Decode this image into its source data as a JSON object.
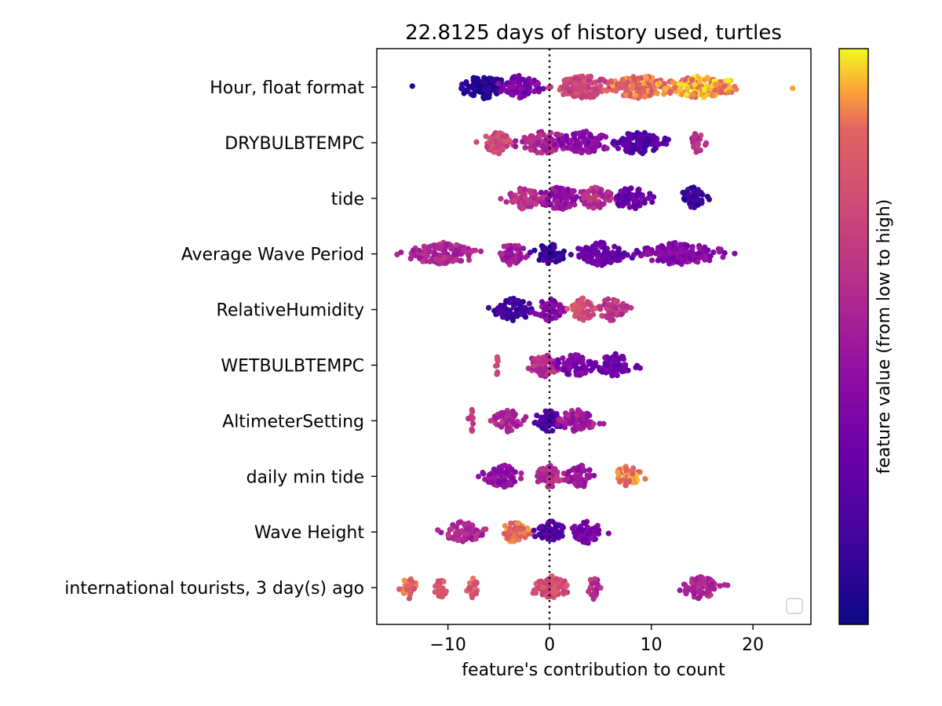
{
  "chart_data": {
    "type": "scatter",
    "subtype": "beeswarm",
    "title": "22.8125 days of history used, turtles",
    "xlabel": "feature's contribution to count",
    "ylabel": "",
    "xlim": [
      -17,
      25.7
    ],
    "xticks": [
      -10,
      0,
      10,
      20
    ],
    "xtick_labels": [
      "−10",
      "0",
      "10",
      "20"
    ],
    "reference_line": {
      "x": 0,
      "style": "dotted",
      "color": "#000000"
    },
    "grid": false,
    "legend": {
      "placement": "lower right",
      "entries": []
    },
    "colorbar": {
      "label": "feature value (from low to high)",
      "colormap": "plasma",
      "low_color": "#0d0887",
      "high_color": "#f0f921",
      "tick_labels": []
    },
    "features": [
      {
        "name": "Hour, float format",
        "spread": [
          -13.5,
          23.9
        ],
        "clusters": [
          {
            "range": [
              -10,
              -3
            ],
            "color": 0.05
          },
          {
            "range": [
              -6,
              0
            ],
            "color": 0.35
          },
          {
            "range": [
              -1,
              8
            ],
            "color": 0.7
          },
          {
            "range": [
              4,
              14
            ],
            "color": 0.85
          },
          {
            "range": [
              10,
              20
            ],
            "color": 0.92
          }
        ]
      },
      {
        "name": "DRYBULBTEMPC",
        "spread": [
          -7.2,
          15.4
        ],
        "clusters": [
          {
            "range": [
              -7.2,
              -3
            ],
            "color": 0.72
          },
          {
            "range": [
              -4,
              3
            ],
            "color": 0.55
          },
          {
            "range": [
              0,
              7
            ],
            "color": 0.4
          },
          {
            "range": [
              5,
              12.5
            ],
            "color": 0.2
          },
          {
            "range": [
              13.5,
              15.4
            ],
            "color": 0.6
          }
        ]
      },
      {
        "name": "tide",
        "spread": [
          -4.8,
          15.7
        ],
        "clusters": [
          {
            "range": [
              -4.8,
              0
            ],
            "color": 0.62
          },
          {
            "range": [
              -2,
              4
            ],
            "color": 0.45
          },
          {
            "range": [
              2,
              7
            ],
            "color": 0.58
          },
          {
            "range": [
              5.5,
              10.5
            ],
            "color": 0.28
          },
          {
            "range": [
              12.5,
              15.7
            ],
            "color": 0.12
          }
        ]
      },
      {
        "name": "Average Wave Period",
        "spread": [
          -15,
          18.2
        ],
        "clusters": [
          {
            "range": [
              -15,
              -6
            ],
            "color": 0.55
          },
          {
            "range": [
              -5.5,
              -2
            ],
            "color": 0.5
          },
          {
            "range": [
              -2,
              2
            ],
            "color": 0.12
          },
          {
            "range": [
              1,
              9
            ],
            "color": 0.28
          },
          {
            "range": [
              7,
              18.2
            ],
            "color": 0.38
          }
        ]
      },
      {
        "name": "RelativeHumidity",
        "spread": [
          -6,
          8
        ],
        "clusters": [
          {
            "range": [
              -6,
              -1
            ],
            "color": 0.15
          },
          {
            "range": [
              -2,
              2
            ],
            "color": 0.4
          },
          {
            "range": [
              1.5,
              5
            ],
            "color": 0.75
          },
          {
            "range": [
              4,
              8
            ],
            "color": 0.62
          }
        ]
      },
      {
        "name": "WETBULBTEMPC",
        "spread": [
          -5.3,
          8.9
        ],
        "clusters": [
          {
            "range": [
              -5.3,
              -5
            ],
            "color": 0.72
          },
          {
            "range": [
              -3,
              2
            ],
            "color": 0.6
          },
          {
            "range": [
              0,
              5
            ],
            "color": 0.35
          },
          {
            "range": [
              4,
              8.9
            ],
            "color": 0.3
          }
        ]
      },
      {
        "name": "AltimeterSetting",
        "spread": [
          -8,
          5.3
        ],
        "clusters": [
          {
            "range": [
              -8,
              -7.3
            ],
            "color": 0.6
          },
          {
            "range": [
              -6,
              -2
            ],
            "color": 0.55
          },
          {
            "range": [
              -2,
              2
            ],
            "color": 0.18
          },
          {
            "range": [
              0,
              5.3
            ],
            "color": 0.5
          }
        ]
      },
      {
        "name": "daily min tide",
        "spread": [
          -7,
          9.4
        ],
        "clusters": [
          {
            "range": [
              -7,
              -2
            ],
            "color": 0.45
          },
          {
            "range": [
              -2,
              2
            ],
            "color": 0.6
          },
          {
            "range": [
              1,
              5
            ],
            "color": 0.48
          },
          {
            "range": [
              6,
              9.4
            ],
            "color": 0.88
          }
        ]
      },
      {
        "name": "Wave Height",
        "spread": [
          -11,
          5.8
        ],
        "clusters": [
          {
            "range": [
              -11,
              -6
            ],
            "color": 0.55
          },
          {
            "range": [
              -5.5,
              -1.5
            ],
            "color": 0.85
          },
          {
            "range": [
              -2,
              2
            ],
            "color": 0.2
          },
          {
            "range": [
              1.5,
              5.8
            ],
            "color": 0.35
          }
        ]
      },
      {
        "name": "international tourists, 3 day(s) ago",
        "spread": [
          -14.8,
          17.5
        ],
        "clusters": [
          {
            "range": [
              -14.8,
              -12.8
            ],
            "color": 0.82
          },
          {
            "range": [
              -11.5,
              -9.8
            ],
            "color": 0.78
          },
          {
            "range": [
              -8.3,
              -6.7
            ],
            "color": 0.8
          },
          {
            "range": [
              -2.5,
              3
            ],
            "color": 0.75
          },
          {
            "range": [
              3.5,
              5.2
            ],
            "color": 0.6
          },
          {
            "range": [
              12.3,
              17.5
            ],
            "color": 0.55
          }
        ]
      }
    ]
  }
}
